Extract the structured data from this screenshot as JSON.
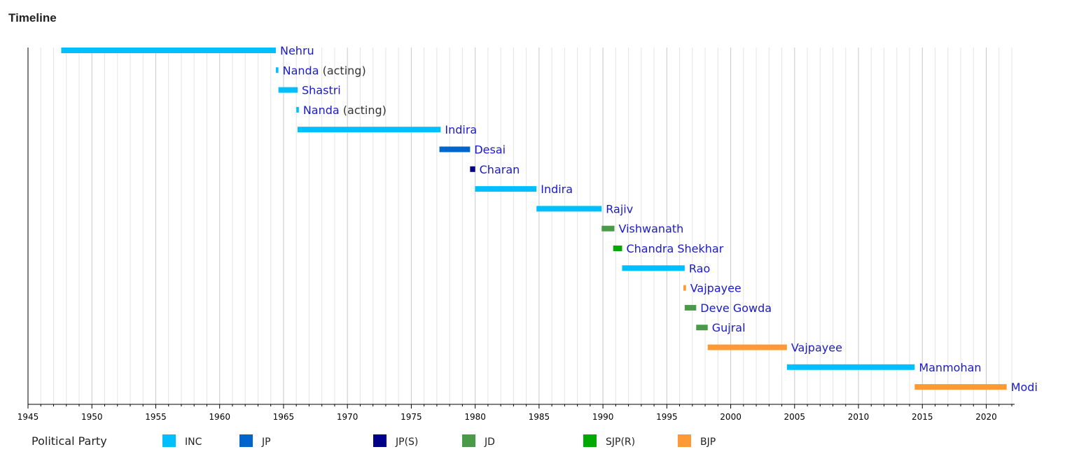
{
  "page": {
    "title": "Timeline"
  },
  "chart_data": {
    "type": "timeline",
    "title": "Timeline",
    "xlim": [
      1945,
      2022
    ],
    "x_ticks": [
      1945,
      1950,
      1955,
      1960,
      1965,
      1970,
      1975,
      1980,
      1985,
      1990,
      1995,
      2000,
      2005,
      2010,
      2015,
      2020
    ],
    "grid": true,
    "colors": {
      "INC": "#00bfff",
      "JP": "#0066cc",
      "JP(S)": "#00008b",
      "JD": "#4a9a4a",
      "SJP(R)": "#00aa00",
      "BJP": "#ff9933",
      "label": "#1a1acc",
      "note": "#333333"
    },
    "legend": {
      "title": "Political Party",
      "position": "bottom",
      "items": [
        {
          "party": "INC",
          "label": "INC"
        },
        {
          "party": "JP",
          "label": "JP"
        },
        {
          "party": "JP(S)",
          "label": "JP(S)"
        },
        {
          "party": "JD",
          "label": "JD"
        },
        {
          "party": "SJP(R)",
          "label": "SJP(R)"
        },
        {
          "party": "BJP",
          "label": "BJP"
        }
      ]
    },
    "bars": [
      {
        "name": "Nehru",
        "note": "",
        "party": "INC",
        "start": 1947.6,
        "end": 1964.4
      },
      {
        "name": "Nanda",
        "note": "(acting)",
        "party": "INC",
        "start": 1964.4,
        "end": 1964.6
      },
      {
        "name": "Shastri",
        "note": "",
        "party": "INC",
        "start": 1964.6,
        "end": 1966.1
      },
      {
        "name": "Nanda",
        "note": "(acting)",
        "party": "INC",
        "start": 1966.0,
        "end": 1966.2
      },
      {
        "name": "Indira",
        "note": "",
        "party": "INC",
        "start": 1966.1,
        "end": 1977.3
      },
      {
        "name": "Desai",
        "note": "",
        "party": "JP",
        "start": 1977.2,
        "end": 1979.6
      },
      {
        "name": "Charan",
        "note": "",
        "party": "JP(S)",
        "start": 1979.6,
        "end": 1980.0
      },
      {
        "name": "Indira",
        "note": "",
        "party": "INC",
        "start": 1980.0,
        "end": 1984.8
      },
      {
        "name": "Rajiv",
        "note": "",
        "party": "INC",
        "start": 1984.8,
        "end": 1989.9
      },
      {
        "name": "Vishwanath",
        "note": "",
        "party": "JD",
        "start": 1989.9,
        "end": 1990.9
      },
      {
        "name": "Chandra Shekhar",
        "note": "",
        "party": "SJP(R)",
        "start": 1990.8,
        "end": 1991.5
      },
      {
        "name": "Rao",
        "note": "",
        "party": "INC",
        "start": 1991.5,
        "end": 1996.4
      },
      {
        "name": "Vajpayee",
        "note": "",
        "party": "BJP",
        "start": 1996.3,
        "end": 1996.5
      },
      {
        "name": "Deve Gowda",
        "note": "",
        "party": "JD",
        "start": 1996.4,
        "end": 1997.3
      },
      {
        "name": "Gujral",
        "note": "",
        "party": "JD",
        "start": 1997.3,
        "end": 1998.2
      },
      {
        "name": "Vajpayee",
        "note": "",
        "party": "BJP",
        "start": 1998.2,
        "end": 2004.4
      },
      {
        "name": "Manmohan",
        "note": "",
        "party": "INC",
        "start": 2004.4,
        "end": 2014.4
      },
      {
        "name": "Modi",
        "note": "",
        "party": "BJP",
        "start": 2014.4,
        "end": 2021.6
      }
    ]
  }
}
